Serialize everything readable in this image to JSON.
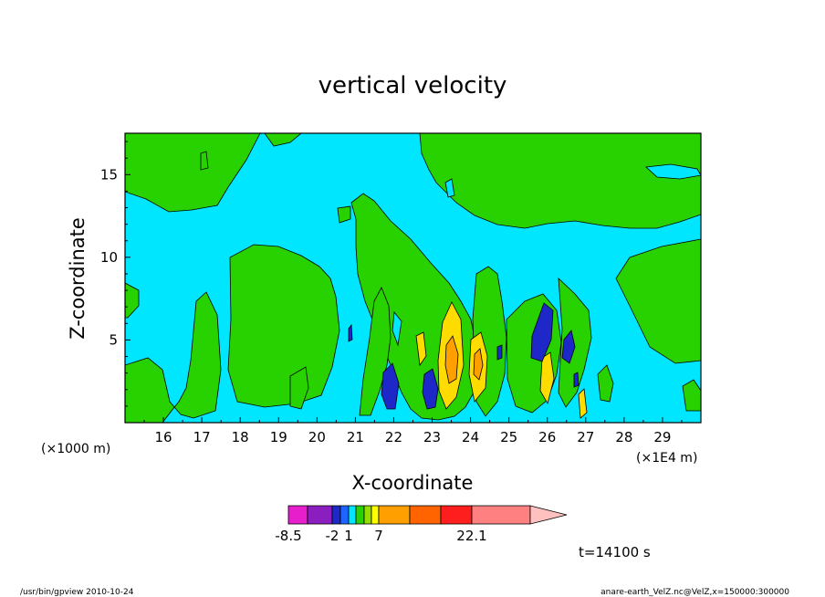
{
  "chart_data": {
    "type": "heatmap",
    "title": "vertical velocity",
    "xlabel": "X-coordinate",
    "ylabel": "Z-coordinate",
    "x_unit_left": "(×1000 m)",
    "x_unit_right": "(×1E4 m)",
    "x_ticks": [
      "16",
      "17",
      "18",
      "19",
      "20",
      "21",
      "22",
      "23",
      "24",
      "25",
      "26",
      "27",
      "28",
      "29"
    ],
    "y_ticks": [
      "5",
      "10",
      "15"
    ],
    "xlim": [
      150000,
      300000
    ],
    "ylim": [
      0,
      17.5
    ],
    "grid": false,
    "colorbar": {
      "colors": [
        "#e61ecb",
        "#8a1ebf",
        "#1e28c8",
        "#1e64ff",
        "#00e6ff",
        "#28d200",
        "#96dc00",
        "#ffff00",
        "#ffa000",
        "#ff6400",
        "#ff1e1e",
        "#ff8080",
        "#ffc0c0"
      ],
      "labels": [
        "-8.5",
        "-2",
        "1",
        "7",
        "22.1"
      ]
    },
    "field_colors": {
      "background": "#00e6ff",
      "weak_up": "#28d200",
      "moderate_up": "#ffdc00",
      "strong_up": "#ffa000",
      "weak_down": "#1e28c8"
    },
    "time_label": "t=14100 s"
  },
  "footer": {
    "left": "/usr/bin/gpview   2010-10-24",
    "right": "anare-earth_VelZ.nc@VelZ,x=150000:300000"
  }
}
